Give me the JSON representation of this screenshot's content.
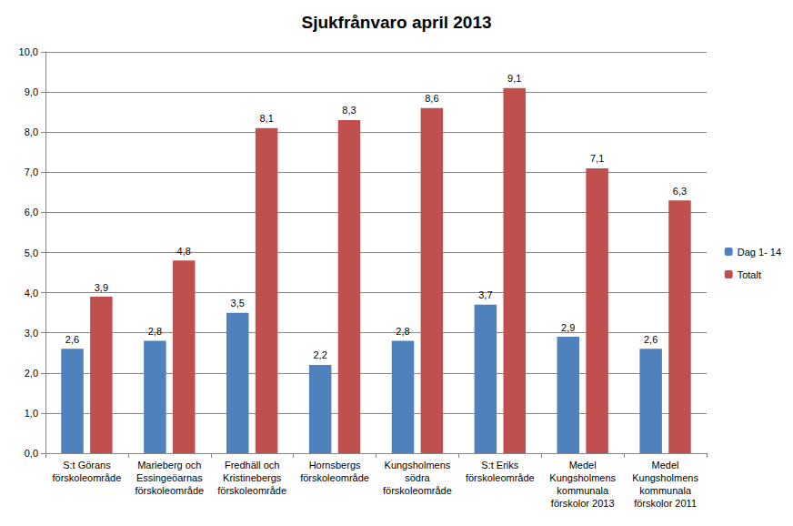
{
  "chart_data": {
    "type": "bar",
    "title": "Sjukfrånvaro april 2013",
    "categories": [
      "S:t Görans\nförskoleområde",
      "Marieberg och\nEssingeöarnas\nförskoleområde",
      "Fredhäll och\nKristinebergs\nförskoleområde",
      "Hornsbergs\nförskoleområde",
      "Kungsholmens\nsödra\nförskoleområde",
      "S:t Eriks\nförskoleområde",
      "Medel\nKungsholmens\nkommunala\nförskolor 2013",
      "Medel\nKungsholmens\nkommunala\nförskolor 2011"
    ],
    "series": [
      {
        "name": "Dag 1- 14",
        "color": "#4f81bd",
        "values": [
          2.6,
          2.8,
          3.5,
          2.2,
          2.8,
          3.7,
          2.9,
          2.6
        ],
        "value_labels": [
          "2,6",
          "2,8",
          "3,5",
          "2,2",
          "2,8",
          "3,7",
          "2,9",
          "2,6"
        ]
      },
      {
        "name": "Totalt",
        "color": "#c0504d",
        "values": [
          3.9,
          4.8,
          8.1,
          8.3,
          8.6,
          9.1,
          7.1,
          6.3
        ],
        "value_labels": [
          "3,9",
          "4,8",
          "8,1",
          "8,3",
          "8,6",
          "9,1",
          "7,1",
          "6,3"
        ]
      }
    ],
    "ylim": [
      0,
      10
    ],
    "yticks": [
      {
        "value": 0,
        "label": "0,0"
      },
      {
        "value": 1,
        "label": "1,0"
      },
      {
        "value": 2,
        "label": "2,0"
      },
      {
        "value": 3,
        "label": "3,0"
      },
      {
        "value": 4,
        "label": "4,0"
      },
      {
        "value": 5,
        "label": "5,0"
      },
      {
        "value": 6,
        "label": "6,0"
      },
      {
        "value": 7,
        "label": "7,0"
      },
      {
        "value": 8,
        "label": "8,0"
      },
      {
        "value": 9,
        "label": "9,0"
      },
      {
        "value": 10,
        "label": "10,0"
      }
    ],
    "grid": true,
    "legend": "right",
    "data_labels": true
  }
}
